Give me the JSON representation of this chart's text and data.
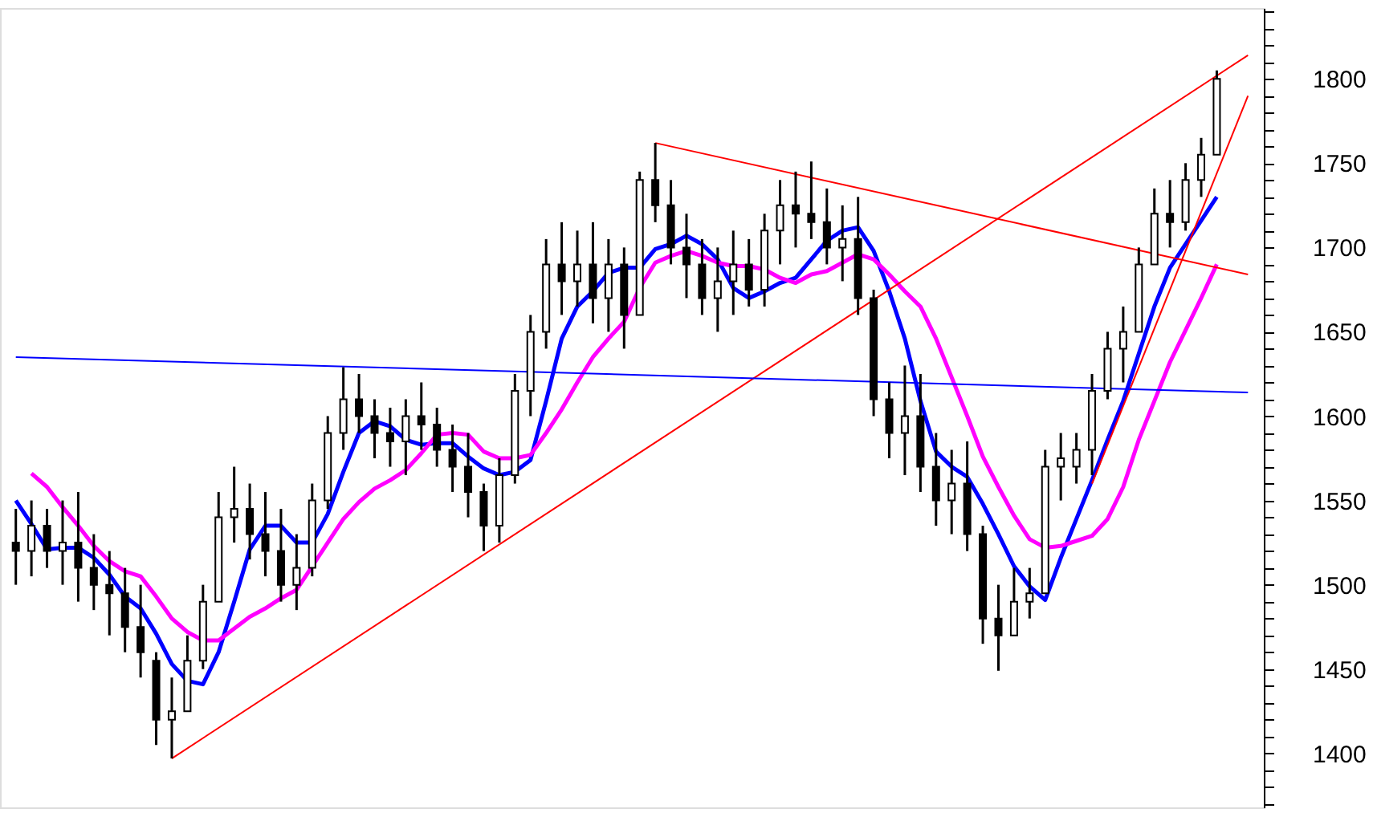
{
  "chart_data": {
    "type": "candlestick",
    "categories": [
      null,
      null,
      null,
      null,
      null,
      null,
      null,
      null,
      null,
      null,
      null,
      null,
      null,
      null,
      null,
      null,
      null,
      null,
      null,
      null,
      null,
      null,
      null,
      null,
      null,
      null,
      null,
      null,
      null,
      null,
      null,
      null,
      null,
      null,
      null,
      null,
      null,
      null,
      null,
      null,
      null,
      null,
      null,
      null,
      null,
      null,
      null,
      null,
      null,
      null,
      null,
      null,
      null,
      null,
      null,
      null,
      null,
      null,
      null,
      null,
      null,
      null,
      null,
      null,
      null,
      null,
      null,
      null,
      null,
      null,
      null,
      null,
      null,
      null,
      null,
      null,
      null,
      null,
      null,
      null
    ],
    "color": "#000000",
    "ohlc": [
      [
        1525,
        1545,
        1500,
        1520
      ],
      [
        1520,
        1550,
        1505,
        1535
      ],
      [
        1535,
        1545,
        1510,
        1520
      ],
      [
        1520,
        1550,
        1500,
        1525
      ],
      [
        1525,
        1555,
        1490,
        1510
      ],
      [
        1510,
        1530,
        1485,
        1500
      ],
      [
        1500,
        1520,
        1470,
        1495
      ],
      [
        1495,
        1510,
        1460,
        1475
      ],
      [
        1475,
        1500,
        1445,
        1460
      ],
      [
        1455,
        1460,
        1405,
        1420
      ],
      [
        1420,
        1445,
        1397,
        1425
      ],
      [
        1425,
        1470,
        1425,
        1455
      ],
      [
        1455,
        1500,
        1450,
        1490
      ],
      [
        1490,
        1555,
        1490,
        1540
      ],
      [
        1540,
        1570,
        1525,
        1545
      ],
      [
        1545,
        1560,
        1515,
        1530
      ],
      [
        1530,
        1555,
        1505,
        1520
      ],
      [
        1520,
        1545,
        1490,
        1500
      ],
      [
        1500,
        1530,
        1485,
        1510
      ],
      [
        1510,
        1560,
        1505,
        1550
      ],
      [
        1550,
        1600,
        1545,
        1590
      ],
      [
        1590,
        1629,
        1580,
        1610
      ],
      [
        1610,
        1625,
        1590,
        1600
      ],
      [
        1600,
        1610,
        1575,
        1590
      ],
      [
        1590,
        1605,
        1570,
        1585
      ],
      [
        1585,
        1610,
        1565,
        1600
      ],
      [
        1600,
        1620,
        1580,
        1595
      ],
      [
        1595,
        1605,
        1570,
        1580
      ],
      [
        1580,
        1595,
        1555,
        1570
      ],
      [
        1570,
        1590,
        1540,
        1555
      ],
      [
        1555,
        1560,
        1520,
        1535
      ],
      [
        1535,
        1575,
        1525,
        1565
      ],
      [
        1565,
        1625,
        1560,
        1615
      ],
      [
        1615,
        1660,
        1600,
        1650
      ],
      [
        1650,
        1705,
        1640,
        1690
      ],
      [
        1690,
        1715,
        1660,
        1680
      ],
      [
        1680,
        1710,
        1665,
        1690
      ],
      [
        1690,
        1715,
        1655,
        1670
      ],
      [
        1670,
        1705,
        1650,
        1690
      ],
      [
        1690,
        1700,
        1640,
        1660
      ],
      [
        1660,
        1745,
        1660,
        1740
      ],
      [
        1740,
        1762,
        1715,
        1725
      ],
      [
        1725,
        1740,
        1690,
        1700
      ],
      [
        1700,
        1720,
        1670,
        1690
      ],
      [
        1690,
        1705,
        1660,
        1670
      ],
      [
        1670,
        1700,
        1650,
        1680
      ],
      [
        1680,
        1710,
        1660,
        1690
      ],
      [
        1690,
        1705,
        1665,
        1675
      ],
      [
        1675,
        1720,
        1665,
        1710
      ],
      [
        1710,
        1740,
        1690,
        1725
      ],
      [
        1725,
        1745,
        1700,
        1720
      ],
      [
        1720,
        1751,
        1705,
        1715
      ],
      [
        1715,
        1735,
        1690,
        1700
      ],
      [
        1700,
        1725,
        1680,
        1705
      ],
      [
        1705,
        1730,
        1660,
        1670
      ],
      [
        1670,
        1675,
        1600,
        1610
      ],
      [
        1610,
        1620,
        1575,
        1590
      ],
      [
        1590,
        1630,
        1565,
        1600
      ],
      [
        1600,
        1625,
        1555,
        1570
      ],
      [
        1570,
        1590,
        1535,
        1550
      ],
      [
        1550,
        1580,
        1530,
        1560
      ],
      [
        1560,
        1585,
        1520,
        1530
      ],
      [
        1530,
        1535,
        1465,
        1480
      ],
      [
        1480,
        1500,
        1449,
        1470
      ],
      [
        1470,
        1510,
        1470,
        1490
      ],
      [
        1490,
        1510,
        1480,
        1495
      ],
      [
        1495,
        1580,
        1495,
        1570
      ],
      [
        1570,
        1590,
        1550,
        1575
      ],
      [
        1570,
        1590,
        1560,
        1580
      ],
      [
        1580,
        1625,
        1565,
        1615
      ],
      [
        1615,
        1650,
        1610,
        1640
      ],
      [
        1640,
        1665,
        1620,
        1650
      ],
      [
        1650,
        1700,
        1650,
        1690
      ],
      [
        1690,
        1735,
        1690,
        1720
      ],
      [
        1720,
        1740,
        1700,
        1715
      ],
      [
        1715,
        1750,
        1710,
        1740
      ],
      [
        1740,
        1765,
        1730,
        1755
      ],
      [
        1755,
        1805,
        1755,
        1800
      ],
      null,
      null
    ],
    "series": [
      {
        "type": "line",
        "color": "#0000ff",
        "values": [
          1550,
          1536,
          1521,
          1522,
          1522,
          1516,
          1506,
          1493,
          1486,
          1471,
          1453,
          1443,
          1441,
          1460,
          1490,
          1521,
          1535,
          1535,
          1525,
          1525,
          1542,
          1567,
          1590,
          1597,
          1594,
          1586,
          1583,
          1584,
          1584,
          1576,
          1569,
          1565,
          1567,
          1574,
          1609,
          1646,
          1665,
          1674,
          1685,
          1688,
          1688,
          1699,
          1702,
          1707,
          1702,
          1693,
          1676,
          1670,
          1674,
          1679,
          1682,
          1693,
          1704,
          1710,
          1712,
          1698,
          1674,
          1646,
          1609,
          1579,
          1570,
          1564,
          1548,
          1530,
          1511,
          1499,
          1491,
          1516,
          1539,
          1562,
          1586,
          1609,
          1637,
          1665,
          1688,
          1702,
          1716,
          1730,
          null,
          null
        ]
      },
      {
        "type": "line",
        "color": "#ff00ff",
        "values": [
          null,
          1566,
          1558,
          1546,
          1535,
          1523,
          1514,
          1508,
          1505,
          1493,
          1480,
          1472,
          1467,
          1467,
          1474,
          1481,
          1486,
          1492,
          1497,
          1511,
          1525,
          1539,
          1549,
          1557,
          1562,
          1568,
          1578,
          1589,
          1590,
          1589,
          1579,
          1575,
          1575,
          1577,
          1590,
          1604,
          1620,
          1635,
          1646,
          1656,
          1676,
          1691,
          1695,
          1698,
          1695,
          1691,
          1689,
          1689,
          1687,
          1682,
          1679,
          1684,
          1686,
          1691,
          1696,
          1693,
          1684,
          1674,
          1665,
          1646,
          1623,
          1600,
          1576,
          1558,
          1541,
          1527,
          1522,
          1523,
          1526,
          1529,
          1539,
          1558,
          1586,
          1609,
          1632,
          1651,
          1670,
          1690,
          null,
          null
        ]
      },
      {
        "type": "line",
        "color": "#ff0000",
        "values": [
          null,
          null,
          null,
          null,
          null,
          null,
          null,
          null,
          null,
          null,
          1397,
          null,
          null,
          null,
          null,
          null,
          null,
          null,
          null,
          null,
          null,
          null,
          null,
          null,
          null,
          null,
          null,
          null,
          null,
          null,
          null,
          null,
          null,
          null,
          null,
          null,
          null,
          null,
          null,
          null,
          null,
          null,
          null,
          null,
          null,
          null,
          null,
          null,
          null,
          null,
          null,
          null,
          null,
          null,
          null,
          null,
          null,
          null,
          null,
          null,
          null,
          null,
          null,
          null,
          null,
          null,
          null,
          null,
          null,
          null,
          null,
          null,
          null,
          null,
          null,
          null,
          null,
          null,
          null,
          1814
        ]
      },
      {
        "type": "line",
        "color": "#ff0000",
        "values": [
          null,
          null,
          null,
          null,
          null,
          null,
          null,
          null,
          null,
          null,
          null,
          null,
          null,
          null,
          null,
          null,
          null,
          null,
          null,
          null,
          null,
          null,
          null,
          null,
          null,
          null,
          null,
          null,
          null,
          null,
          null,
          null,
          null,
          null,
          null,
          null,
          null,
          null,
          null,
          null,
          null,
          1762,
          null,
          null,
          null,
          null,
          null,
          null,
          null,
          null,
          null,
          null,
          null,
          null,
          null,
          null,
          null,
          null,
          null,
          null,
          null,
          null,
          null,
          null,
          null,
          null,
          null,
          null,
          null,
          null,
          null,
          null,
          null,
          null,
          null,
          null,
          null,
          null,
          null,
          1684
        ]
      },
      {
        "type": "line",
        "color": "#ff0000",
        "values": [
          null,
          null,
          null,
          null,
          null,
          null,
          null,
          null,
          null,
          null,
          null,
          null,
          null,
          null,
          null,
          null,
          null,
          null,
          null,
          null,
          null,
          null,
          null,
          null,
          null,
          null,
          null,
          null,
          null,
          null,
          null,
          null,
          null,
          null,
          null,
          null,
          null,
          null,
          null,
          null,
          null,
          null,
          null,
          null,
          null,
          null,
          null,
          null,
          null,
          null,
          null,
          null,
          null,
          null,
          null,
          null,
          null,
          null,
          null,
          null,
          null,
          null,
          null,
          null,
          null,
          null,
          null,
          null,
          null,
          1560,
          null,
          null,
          null,
          null,
          null,
          null,
          null,
          null,
          null,
          1790
        ]
      },
      {
        "type": "line",
        "color": "#0000ff",
        "values": [
          1635,
          null,
          null,
          null,
          null,
          null,
          null,
          null,
          null,
          null,
          null,
          null,
          null,
          null,
          null,
          null,
          null,
          null,
          null,
          null,
          null,
          null,
          null,
          null,
          null,
          null,
          null,
          null,
          null,
          null,
          null,
          null,
          null,
          null,
          null,
          null,
          null,
          null,
          null,
          null,
          null,
          null,
          null,
          null,
          null,
          null,
          null,
          null,
          null,
          null,
          null,
          null,
          null,
          null,
          null,
          null,
          null,
          null,
          null,
          null,
          null,
          null,
          null,
          null,
          null,
          null,
          null,
          null,
          null,
          null,
          null,
          null,
          null,
          null,
          null,
          null,
          null,
          null,
          null,
          1614
        ]
      }
    ],
    "ylim": [
      1368,
      1842
    ],
    "yticks": [
      {
        "value": 1370,
        "label": null
      },
      {
        "value": 1380,
        "label": null
      },
      {
        "value": 1390,
        "label": null
      },
      1400,
      {
        "value": 1410,
        "label": null
      },
      {
        "value": 1420,
        "label": null
      },
      {
        "value": 1430,
        "label": null
      },
      {
        "value": 1440,
        "label": null
      },
      1450,
      {
        "value": 1460,
        "label": null
      },
      {
        "value": 1470,
        "label": null
      },
      {
        "value": 1480,
        "label": null
      },
      {
        "value": 1490,
        "label": null
      },
      1500,
      {
        "value": 1510,
        "label": null
      },
      {
        "value": 1520,
        "label": null
      },
      {
        "value": 1530,
        "label": null
      },
      {
        "value": 1540,
        "label": null
      },
      1550,
      {
        "value": 1560,
        "label": null
      },
      {
        "value": 1570,
        "label": null
      },
      {
        "value": 1580,
        "label": null
      },
      {
        "value": 1590,
        "label": null
      },
      1600,
      {
        "value": 1610,
        "label": null
      },
      {
        "value": 1620,
        "label": null
      },
      {
        "value": 1630,
        "label": null
      },
      {
        "value": 1640,
        "label": null
      },
      1650,
      {
        "value": 1660,
        "label": null
      },
      {
        "value": 1670,
        "label": null
      },
      {
        "value": 1680,
        "label": null
      },
      {
        "value": 1690,
        "label": null
      },
      1700,
      {
        "value": 1710,
        "label": null
      },
      {
        "value": 1720,
        "label": null
      },
      {
        "value": 1730,
        "label": null
      },
      {
        "value": 1740,
        "label": null
      },
      1750,
      {
        "value": 1760,
        "label": null
      },
      {
        "value": 1770,
        "label": null
      },
      {
        "value": 1780,
        "label": null
      },
      {
        "value": 1790,
        "label": null
      },
      1800,
      {
        "value": 1810,
        "label": null
      },
      {
        "value": 1820,
        "label": null
      },
      {
        "value": 1830,
        "label": null
      },
      {
        "value": 1840,
        "label": null
      }
    ],
    "tick_labels": "y",
    "grid": false
  }
}
